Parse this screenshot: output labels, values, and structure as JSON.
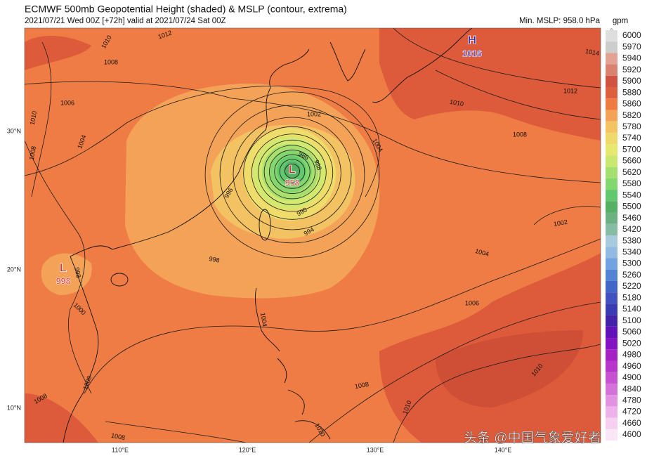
{
  "header": {
    "title": "ECMWF 500mb Geopotential Height (shaded) & MSLP (contour, extrema)",
    "subtitle": "2021/07/21 Wed 00Z [+72h] valid at 2021/07/24 Sat 00Z",
    "min_mslp": "Min. MSLP: 958.0 hPa"
  },
  "colorbar": {
    "unit": "gpm",
    "levels": [
      {
        "label": "6000",
        "color": "#dedede"
      },
      {
        "label": "5970",
        "color": "#cdcdcd"
      },
      {
        "label": "5940",
        "color": "#e2a394"
      },
      {
        "label": "5920",
        "color": "#d98270"
      },
      {
        "label": "5900",
        "color": "#cf5340"
      },
      {
        "label": "5880",
        "color": "#de5f3e"
      },
      {
        "label": "5860",
        "color": "#ef7b43"
      },
      {
        "label": "5820",
        "color": "#f4a258"
      },
      {
        "label": "5780",
        "color": "#f4c362"
      },
      {
        "label": "5740",
        "color": "#efd96c"
      },
      {
        "label": "5700",
        "color": "#e7e86f"
      },
      {
        "label": "5660",
        "color": "#c8e86f"
      },
      {
        "label": "5620",
        "color": "#a3e06f"
      },
      {
        "label": "5580",
        "color": "#82d86f"
      },
      {
        "label": "5540",
        "color": "#62c86d"
      },
      {
        "label": "5500",
        "color": "#55b063"
      },
      {
        "label": "5460",
        "color": "#6db082"
      },
      {
        "label": "5420",
        "color": "#86bba4"
      },
      {
        "label": "5380",
        "color": "#a7cbdc"
      },
      {
        "label": "5340",
        "color": "#93bbe2"
      },
      {
        "label": "5300",
        "color": "#73a2e0"
      },
      {
        "label": "5260",
        "color": "#5583d4"
      },
      {
        "label": "5220",
        "color": "#4265c8"
      },
      {
        "label": "5180",
        "color": "#4251c0"
      },
      {
        "label": "5140",
        "color": "#3a3ab2"
      },
      {
        "label": "5100",
        "color": "#4322aa"
      },
      {
        "label": "5060",
        "color": "#6012b8"
      },
      {
        "label": "5020",
        "color": "#8212c2"
      },
      {
        "label": "4980",
        "color": "#a422c4"
      },
      {
        "label": "4960",
        "color": "#b735ca"
      },
      {
        "label": "4900",
        "color": "#c652d2"
      },
      {
        "label": "4840",
        "color": "#d572da"
      },
      {
        "label": "4780",
        "color": "#e193e2"
      },
      {
        "label": "4720",
        "color": "#edb2ea"
      },
      {
        "label": "4660",
        "color": "#f6d0f1"
      },
      {
        "label": "4600",
        "color": "#fbe6f7"
      }
    ]
  },
  "axes": {
    "lat_labels": [
      "30°N",
      "20°N",
      "10°N"
    ],
    "lon_labels": [
      "110°E",
      "120°E",
      "130°E",
      "140°E"
    ]
  },
  "extrema": [
    {
      "symbol": "H",
      "value": "1016",
      "color": "#1f2fd0"
    },
    {
      "symbol": "L",
      "value": "958",
      "color": "#d81c2a"
    },
    {
      "symbol": "L",
      "value": "998",
      "color": "#d81c2a"
    }
  ],
  "contour_labels": [
    "1002",
    "1004",
    "1006",
    "1008",
    "1010",
    "1012",
    "1012",
    "1010",
    "1008",
    "1002",
    "1004",
    "1006",
    "1008",
    "1010",
    "1010",
    "998",
    "996",
    "994",
    "990",
    "988",
    "986",
    "1004",
    "1008",
    "1010",
    "1000",
    "1008",
    "1008",
    "1008",
    "1004",
    "1010",
    "1014",
    "998"
  ],
  "watermark": "头条 @中国气象爱好者"
}
